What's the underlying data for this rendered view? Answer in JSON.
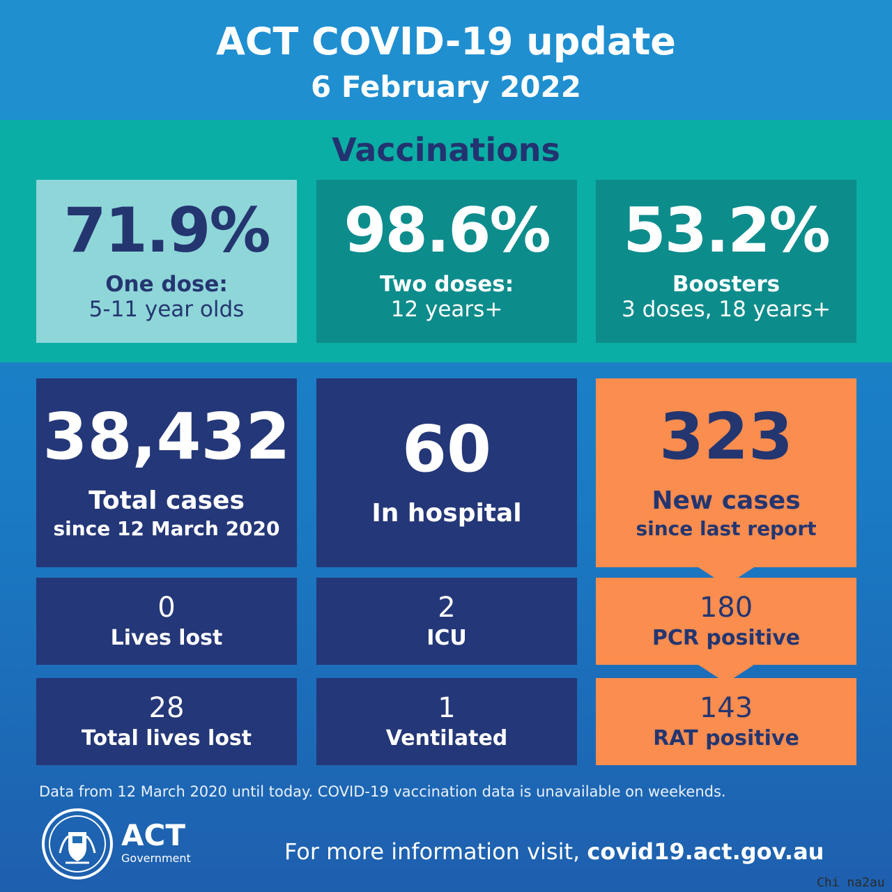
{
  "header": {
    "title": "ACT COVID-19 update",
    "date": "6 February 2022"
  },
  "vaccinations": {
    "heading": "Vaccinations",
    "cards": [
      {
        "value": "71.9%",
        "label": "One dose:",
        "sub": "5-11 year olds"
      },
      {
        "value": "98.6%",
        "label": "Two doses:",
        "sub": "12 years+"
      },
      {
        "value": "53.2%",
        "label": "Boosters",
        "sub": "3 doses, 18 years+"
      }
    ]
  },
  "stats": {
    "total_cases": {
      "value": "38,432",
      "label": "Total cases",
      "sub": "since 12 March 2020"
    },
    "in_hospital": {
      "value": "60",
      "label": "In hospital"
    },
    "new_cases": {
      "value": "323",
      "label": "New cases",
      "sub": "since last report"
    },
    "lives_lost": {
      "value": "0",
      "label": "Lives lost"
    },
    "icu": {
      "value": "2",
      "label": "ICU"
    },
    "pcr_positive": {
      "value": "180",
      "label": "PCR positive"
    },
    "total_lives_lost": {
      "value": "28",
      "label": "Total lives lost"
    },
    "ventilated": {
      "value": "1",
      "label": "Ventilated"
    },
    "rat_positive": {
      "value": "143",
      "label": "RAT positive"
    }
  },
  "footer": {
    "note": "Data from 12 March 2020 until today.  COVID-19 vaccination data is unavailable on weekends.",
    "logo_title": "ACT",
    "logo_sub": "Government",
    "more_info": "For more information visit,",
    "url": "covid19.act.gov.au",
    "watermark": "Chi na2au"
  },
  "colors": {
    "navy": "#243778",
    "orange": "#fb8d4f",
    "teal": "#0aaea4",
    "dark_teal": "#0d8c8c",
    "light_teal": "#8fd6d9",
    "blue": "#1f8fd0"
  }
}
